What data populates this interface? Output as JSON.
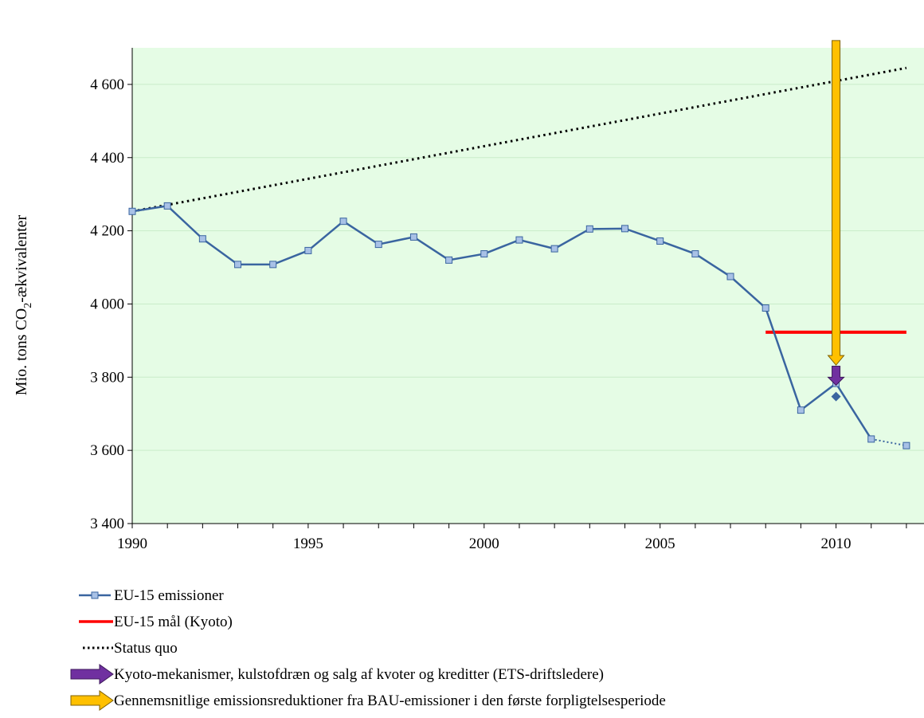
{
  "chart_data": {
    "type": "line",
    "title": "",
    "xlabel": "",
    "ylabel_main": "Mio. tons CO",
    "ylabel_sub": "2",
    "ylabel_tail": "-ækvivalenter",
    "xlim": [
      1990,
      2012.5
    ],
    "ylim": [
      3400,
      4700
    ],
    "x_ticks": [
      1990,
      1995,
      2000,
      2005,
      2010
    ],
    "x_tick_labels": [
      "1990",
      "1995",
      "2000",
      "2005",
      "2010"
    ],
    "y_ticks": [
      3400,
      3600,
      3800,
      4000,
      4200,
      4400,
      4600
    ],
    "y_tick_labels": [
      "3 400",
      "3 600",
      "3 800",
      "4 000",
      "4 200",
      "4 400",
      "4 600"
    ],
    "grid": "horizontal",
    "plot_background": "#e5fce5",
    "series": [
      {
        "name": "EU-15 emissioner",
        "color": "#3a65a0",
        "marker_fill": "#a8c1e6",
        "x": [
          1990,
          1991,
          1992,
          1993,
          1994,
          1995,
          1996,
          1997,
          1998,
          1999,
          2000,
          2001,
          2002,
          2003,
          2004,
          2005,
          2006,
          2007,
          2008,
          2009,
          2010,
          2011
        ],
        "y": [
          4253,
          4268,
          4178,
          4108,
          4108,
          4146,
          4226,
          4163,
          4183,
          4120,
          4137,
          4175,
          4151,
          4205,
          4206,
          4172,
          4137,
          4075,
          3989,
          3710,
          3783,
          3631
        ]
      },
      {
        "name": "EU-15 emissioner (projection)",
        "color": "#3a65a0",
        "marker_fill": "#a8c1e6",
        "dashed": true,
        "x": [
          2011,
          2012
        ],
        "y": [
          3631,
          3613
        ]
      },
      {
        "name": "EU-15 mål (Kyoto)",
        "color": "#ff0000",
        "x": [
          2008,
          2012
        ],
        "y": [
          3923,
          3923
        ]
      },
      {
        "name": "Status quo",
        "color": "#000000",
        "dotted": true,
        "x": [
          1990,
          2012
        ],
        "y": [
          4253,
          4645
        ]
      },
      {
        "name": "Kyoto point 2010",
        "color": "#3a65a0",
        "marker": "diamond",
        "x": [
          2010
        ],
        "y": [
          3747
        ]
      }
    ],
    "annotations": [
      {
        "type": "arrow",
        "name": "Gennemsnitlige emissionsreduktioner fra BAU-emissioner i den første forpligtelsesperiode",
        "color": "#ffc000",
        "outline": "#7f6000",
        "x": 2010,
        "y_from": 4720,
        "y_to": 3833
      },
      {
        "type": "arrow",
        "name": "Kyoto-mekanismer, kulstofdræn og salg af kvoter og kreditter (ETS-driftsledere)",
        "color": "#7030a0",
        "outline": "#3f1a5c",
        "x": 2010,
        "y_from": 3830,
        "y_to": 3778
      }
    ],
    "legend_placement": "bottom-left",
    "legend": [
      {
        "label": "EU-15 emissioner",
        "symbol": "line-marker",
        "color": "#3a65a0",
        "marker_fill": "#a8c1e6"
      },
      {
        "label": "EU-15 mål (Kyoto)",
        "symbol": "line",
        "color": "#ff0000"
      },
      {
        "label": "Status quo",
        "symbol": "dotted",
        "color": "#000000"
      },
      {
        "label": "Kyoto-mekanismer, kulstofdræn og salg af kvoter og kreditter (ETS-driftsledere)",
        "symbol": "arrow",
        "color": "#7030a0",
        "outline": "#3f1a5c"
      },
      {
        "label": "Gennemsnitlige emissionsreduktioner fra BAU-emissioner i den første forpligtelsesperiode",
        "symbol": "arrow",
        "color": "#ffc000",
        "outline": "#7f6000"
      }
    ]
  }
}
